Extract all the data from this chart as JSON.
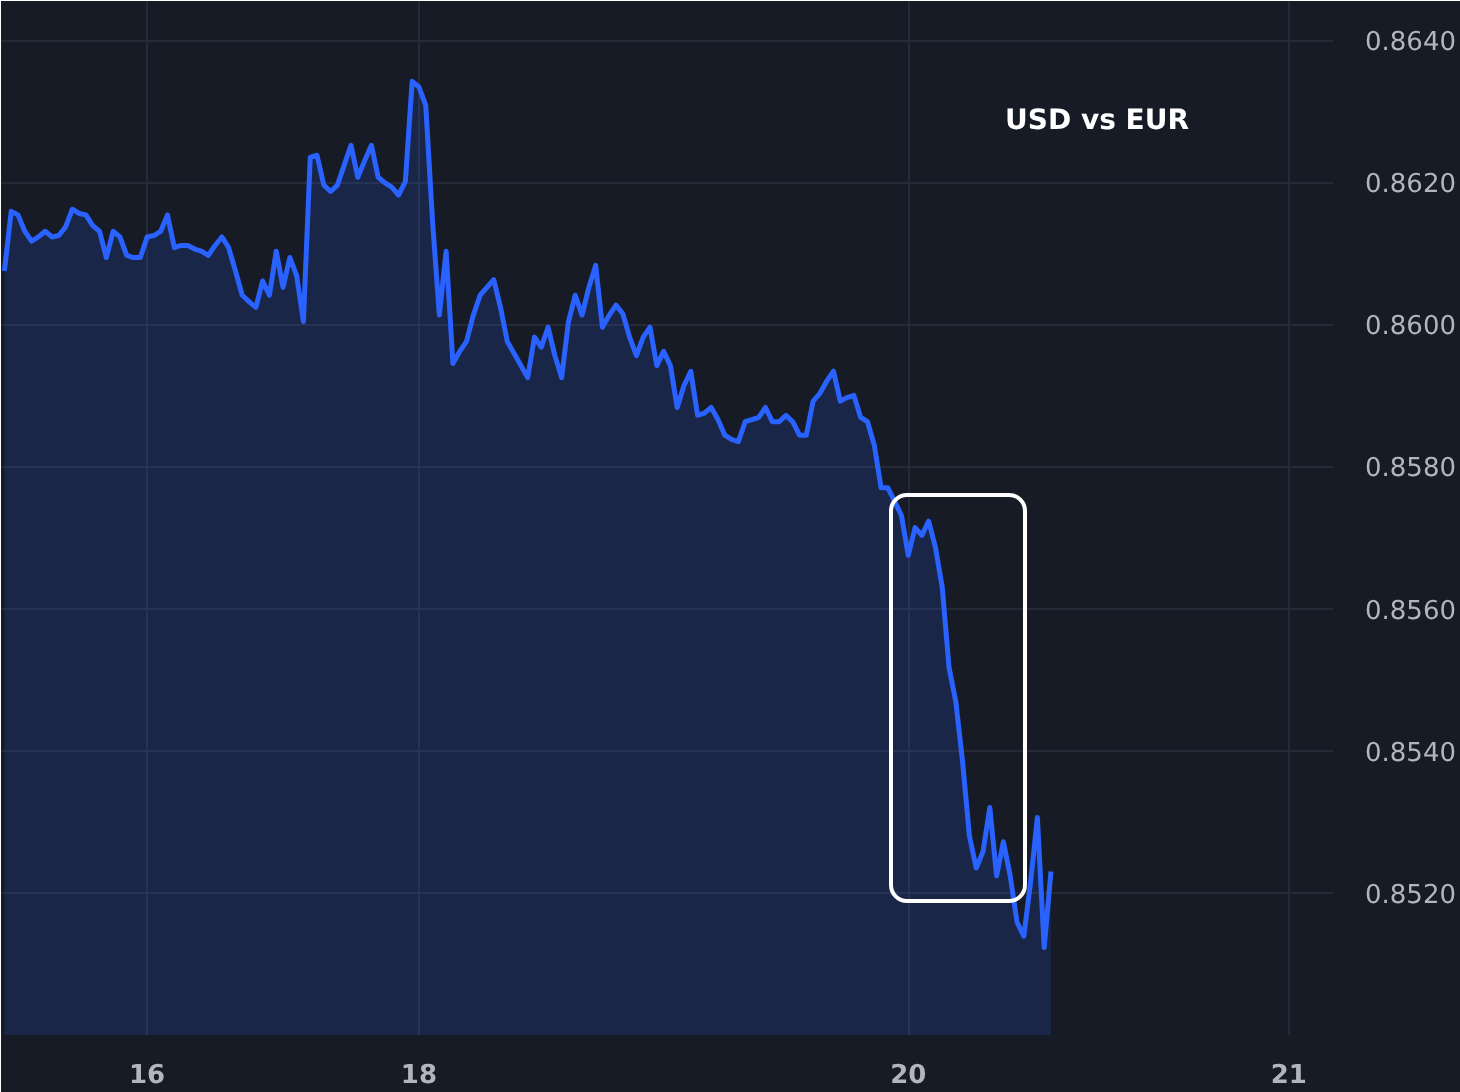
{
  "chart_data": {
    "type": "area",
    "title": "USD vs EUR",
    "grid": true,
    "categories": [
      null,
      null,
      null,
      null,
      null,
      null,
      null,
      null,
      null,
      null,
      null,
      null,
      null,
      null,
      null,
      null,
      null,
      null,
      null,
      null,
      null,
      "16",
      null,
      null,
      null,
      null,
      null,
      null,
      null,
      null,
      null,
      null,
      null,
      null,
      null,
      null,
      null,
      null,
      null,
      null,
      null,
      null,
      null,
      null,
      null,
      null,
      null,
      null,
      null,
      null,
      null,
      null,
      null,
      null,
      null,
      null,
      null,
      null,
      null,
      null,
      null,
      "18",
      null,
      null,
      null,
      null,
      null,
      null,
      null,
      null,
      null,
      null,
      null,
      null,
      null,
      null,
      null,
      null,
      null,
      null,
      null,
      null,
      null,
      null,
      null,
      null,
      null,
      null,
      null,
      null,
      null,
      null,
      null,
      null,
      null,
      null,
      null,
      null,
      null,
      null,
      null,
      null,
      null,
      null,
      null,
      null,
      null,
      null,
      null,
      null,
      null,
      null,
      null,
      null,
      null,
      null,
      null,
      null,
      null,
      null,
      null,
      null,
      null,
      null,
      null,
      null,
      null,
      null,
      null,
      null,
      null,
      null,
      null,
      "20",
      null,
      null,
      null,
      null,
      null,
      null,
      null,
      null,
      null,
      null,
      null,
      null,
      null,
      null,
      null,
      null,
      null,
      null,
      null,
      null,
      null,
      null,
      null,
      null,
      null,
      null,
      null,
      null,
      null,
      null,
      null,
      null,
      null,
      null,
      null,
      null,
      null,
      null,
      null,
      null,
      null,
      null,
      null,
      null,
      null,
      null,
      null,
      null,
      null,
      null,
      null,
      null,
      null,
      null,
      null,
      "21",
      null,
      null,
      null,
      null,
      null,
      null
    ],
    "ylim": [
      0.85,
      0.86455
    ],
    "yticks": [
      {
        "value": 0.852,
        "label": "0.8520"
      },
      {
        "value": 0.854,
        "label": "0.8540"
      },
      {
        "value": 0.856,
        "label": "0.8560"
      },
      {
        "value": 0.858,
        "label": "0.8580"
      },
      {
        "value": 0.86,
        "label": "0.8600"
      },
      {
        "value": 0.862,
        "label": "0.8620"
      },
      {
        "value": 0.864,
        "label": "0.8640"
      }
    ],
    "series": [
      {
        "color": "#2962ff",
        "values": [
          0.86075,
          0.86159,
          0.86154,
          0.86131,
          0.86117,
          0.86123,
          0.86131,
          0.86123,
          0.86125,
          0.86137,
          0.86162,
          0.86156,
          0.86154,
          0.86139,
          0.86131,
          0.86094,
          0.86131,
          0.86123,
          0.86097,
          0.86094,
          0.86094,
          0.86123,
          0.86125,
          0.86131,
          0.86154,
          0.86108,
          0.86111,
          0.86111,
          0.86106,
          0.86103,
          0.86097,
          0.86111,
          0.86123,
          0.86108,
          0.86075,
          0.86041,
          0.86032,
          0.86024,
          0.86061,
          0.86041,
          0.86103,
          0.86052,
          0.86094,
          0.86069,
          0.86004,
          0.86235,
          0.86238,
          0.86196,
          0.86187,
          0.86196,
          0.86224,
          0.86252,
          0.86207,
          0.8623,
          0.86252,
          0.86207,
          0.86199,
          0.86193,
          0.86182,
          0.86201,
          0.86342,
          0.86334,
          0.86308,
          0.86145,
          0.86013,
          0.86103,
          0.85945,
          0.85962,
          0.85976,
          0.86013,
          0.86041,
          0.86052,
          0.86063,
          0.86024,
          0.85976,
          0.85959,
          0.85942,
          0.85925,
          0.85982,
          0.85968,
          0.85996,
          0.85956,
          0.85925,
          0.86004,
          0.86041,
          0.86013,
          0.86052,
          0.86083,
          0.85996,
          0.86013,
          0.86027,
          0.86015,
          0.85982,
          0.85956,
          0.85982,
          0.85996,
          0.85942,
          0.85962,
          0.85942,
          0.85883,
          0.85914,
          0.85934,
          0.85872,
          0.85875,
          0.85883,
          0.85866,
          0.85844,
          0.85838,
          0.85835,
          0.85863,
          0.85866,
          0.85869,
          0.85883,
          0.85863,
          0.85863,
          0.85872,
          0.85863,
          0.85844,
          0.85844,
          0.85892,
          0.85903,
          0.8592,
          0.85934,
          0.85892,
          0.85897,
          0.859,
          0.85869,
          0.85863,
          0.8583,
          0.8577,
          0.8577,
          0.85751,
          0.85731,
          0.85675,
          0.85714,
          0.85703,
          0.85723,
          0.85686,
          0.8563,
          0.85517,
          0.85469,
          0.85384,
          0.8528,
          0.85235,
          0.85258,
          0.8532,
          0.85224,
          0.85272,
          0.85224,
          0.85159,
          0.85139,
          0.85215,
          0.85306,
          0.85123,
          0.8523,
          null,
          null,
          null,
          null,
          null,
          null,
          null,
          null,
          null,
          null,
          null,
          null,
          null,
          null,
          null,
          null,
          null,
          null,
          null,
          null,
          null,
          null,
          null,
          null,
          null,
          null,
          null,
          null,
          null,
          null,
          null,
          null,
          null,
          null,
          null,
          null,
          null,
          null,
          null,
          null,
          null
        ]
      }
    ]
  }
}
